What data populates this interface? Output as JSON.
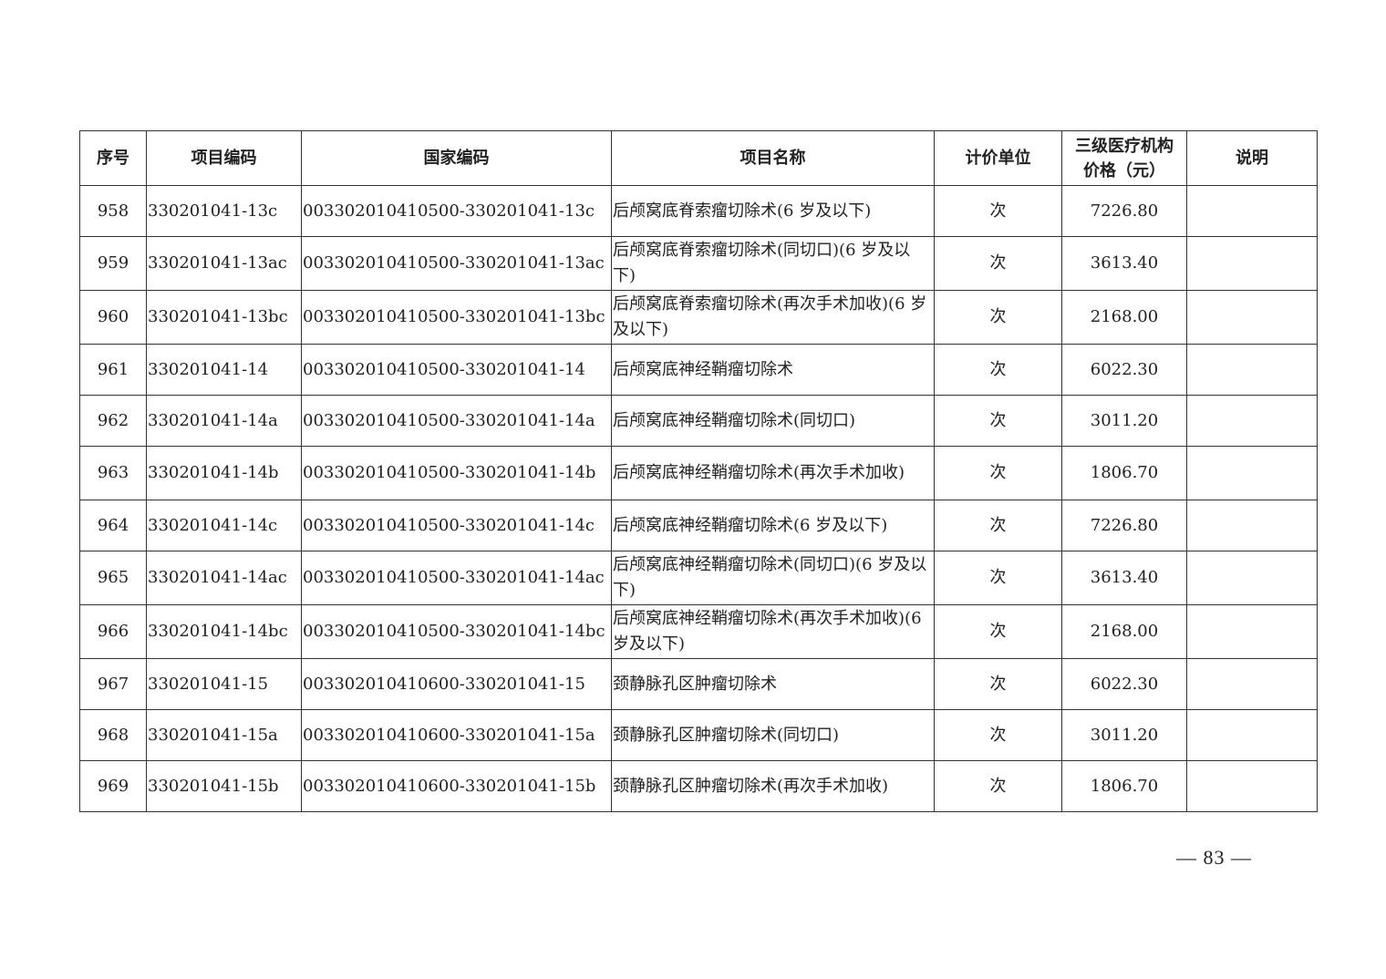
{
  "table": {
    "headers": [
      "序号",
      "项目编码",
      "国家编码",
      "项目名称",
      "计价单位",
      "三级医疗机构价格（元）",
      "说明"
    ],
    "header_price_line1": "三级医疗机构",
    "header_price_line2": "价格（元）",
    "rows": [
      {
        "no": "958",
        "code": "330201041-13c",
        "national": "003302010410500-330201041-13c",
        "name": "后颅窝底脊索瘤切除术(6 岁及以下)",
        "unit": "次",
        "price": "7226.80",
        "note": "",
        "lines": 1
      },
      {
        "no": "959",
        "code": "330201041-13ac",
        "national": "003302010410500-330201041-13ac",
        "name": "后颅窝底脊索瘤切除术(同切口)(6 岁及以下)",
        "unit": "次",
        "price": "3613.40",
        "note": "",
        "lines": 2
      },
      {
        "no": "960",
        "code": "330201041-13bc",
        "national": "003302010410500-330201041-13bc",
        "name": "后颅窝底脊索瘤切除术(再次手术加收)(6 岁及以下)",
        "unit": "次",
        "price": "2168.00",
        "note": "",
        "lines": 2
      },
      {
        "no": "961",
        "code": "330201041-14",
        "national": "003302010410500-330201041-14",
        "name": "后颅窝底神经鞘瘤切除术",
        "unit": "次",
        "price": "6022.30",
        "note": "",
        "lines": 1
      },
      {
        "no": "962",
        "code": "330201041-14a",
        "national": "003302010410500-330201041-14a",
        "name": "后颅窝底神经鞘瘤切除术(同切口)",
        "unit": "次",
        "price": "3011.20",
        "note": "",
        "lines": 1
      },
      {
        "no": "963",
        "code": "330201041-14b",
        "national": "003302010410500-330201041-14b",
        "name": "后颅窝底神经鞘瘤切除术(再次手术加收)",
        "unit": "次",
        "price": "1806.70",
        "note": "",
        "lines": 2
      },
      {
        "no": "964",
        "code": "330201041-14c",
        "national": "003302010410500-330201041-14c",
        "name": "后颅窝底神经鞘瘤切除术(6 岁及以下)",
        "unit": "次",
        "price": "7226.80",
        "note": "",
        "lines": 1
      },
      {
        "no": "965",
        "code": "330201041-14ac",
        "national": "003302010410500-330201041-14ac",
        "name": "后颅窝底神经鞘瘤切除术(同切口)(6 岁及以下)",
        "unit": "次",
        "price": "3613.40",
        "note": "",
        "lines": 2
      },
      {
        "no": "966",
        "code": "330201041-14bc",
        "national": "003302010410500-330201041-14bc",
        "name": "后颅窝底神经鞘瘤切除术(再次手术加收)(6 岁及以下)",
        "unit": "次",
        "price": "2168.00",
        "note": "",
        "lines": 2
      },
      {
        "no": "967",
        "code": "330201041-15",
        "national": "003302010410600-330201041-15",
        "name": "颈静脉孔区肿瘤切除术",
        "unit": "次",
        "price": "6022.30",
        "note": "",
        "lines": 1
      },
      {
        "no": "968",
        "code": "330201041-15a",
        "national": "003302010410600-330201041-15a",
        "name": "颈静脉孔区肿瘤切除术(同切口)",
        "unit": "次",
        "price": "3011.20",
        "note": "",
        "lines": 1
      },
      {
        "no": "969",
        "code": "330201041-15b",
        "national": "003302010410600-330201041-15b",
        "name": "颈静脉孔区肿瘤切除术(再次手术加收)",
        "unit": "次",
        "price": "1806.70",
        "note": "",
        "lines": 1
      }
    ]
  },
  "page_number": "— 83 —"
}
